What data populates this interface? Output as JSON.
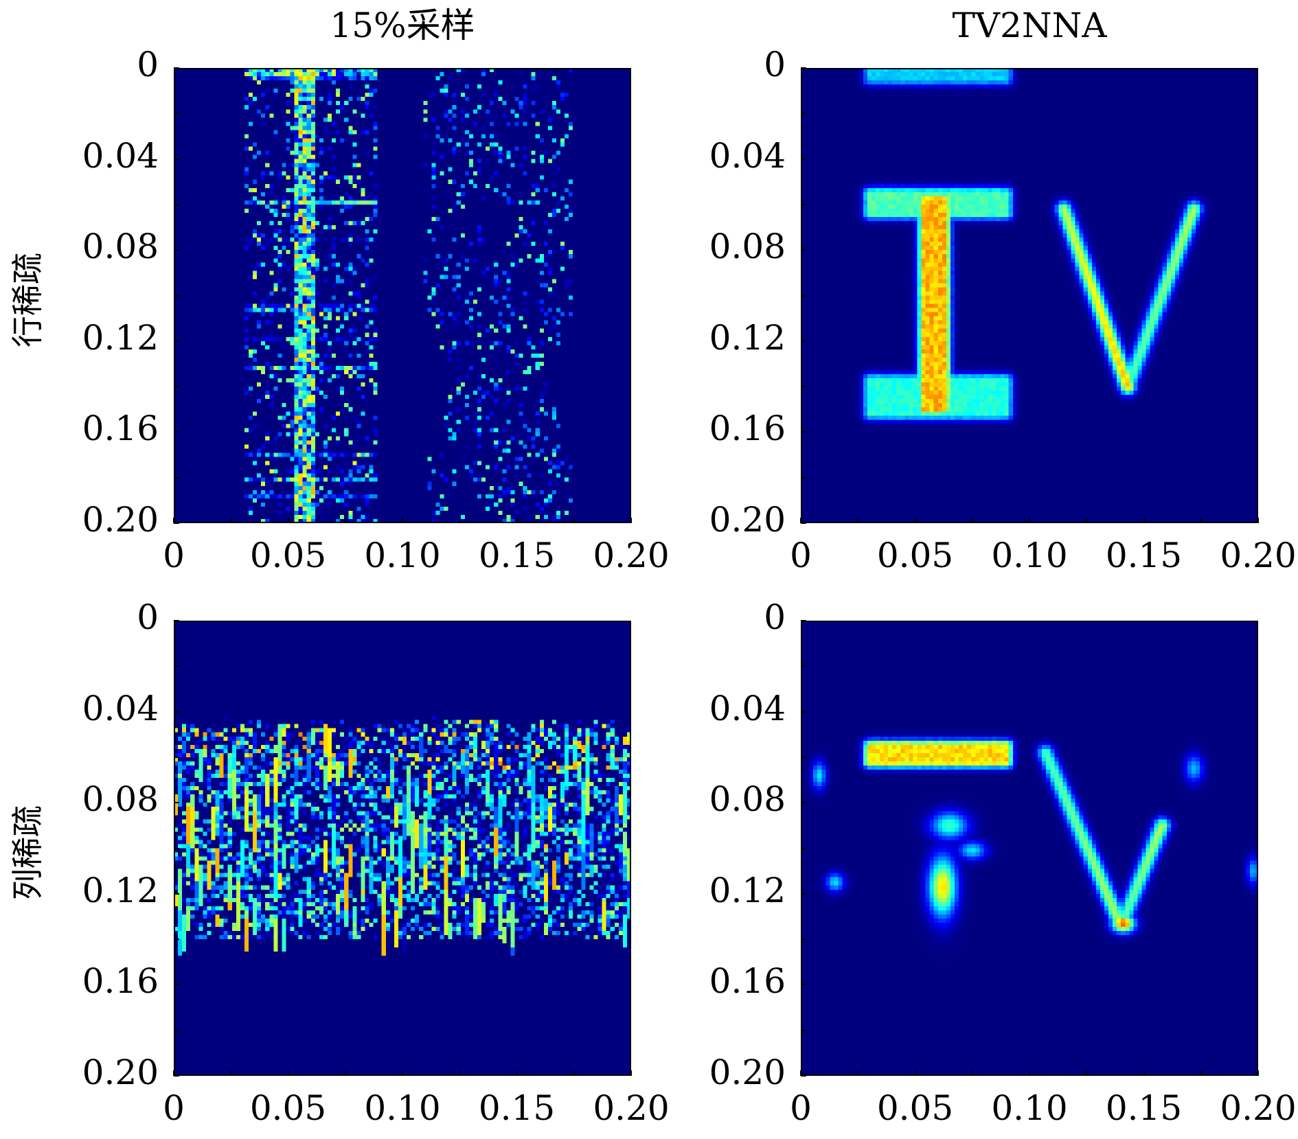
{
  "chart_data": [
    {
      "type": "heatmap",
      "title": "15%采样",
      "ylabel": "行稀疏",
      "xlim": [
        0,
        0.2
      ],
      "ylim": [
        0,
        0.2
      ],
      "xticks": [
        "0",
        "0.05",
        "0.10",
        "0.15",
        "0.20"
      ],
      "yticks": [
        "0",
        "0.04",
        "0.08",
        "0.12",
        "0.16",
        "0.20"
      ],
      "colormap": "jet",
      "y_direction": "down",
      "description_data": {
        "pattern": "row-sampled speckle",
        "bands": [
          [
            0.03,
            0.09
          ],
          [
            0.11,
            0.175
          ]
        ]
      }
    },
    {
      "type": "heatmap",
      "title": "TV2NNA",
      "ylabel": "",
      "xlim": [
        0,
        0.2
      ],
      "ylim": [
        0,
        0.2
      ],
      "xticks": [
        "0",
        "0.05",
        "0.10",
        "0.15",
        "0.20"
      ],
      "yticks": [
        "0",
        "0.04",
        "0.08",
        "0.12",
        "0.16",
        "0.20"
      ],
      "colormap": "jet",
      "y_direction": "down",
      "shapes": [
        {
          "kind": "rect",
          "x": [
            0.03,
            0.09
          ],
          "y": [
            0.055,
            0.064
          ],
          "value": 0.55
        },
        {
          "kind": "rect",
          "x": [
            0.054,
            0.063
          ],
          "y": [
            0.058,
            0.15
          ],
          "value": 0.85
        },
        {
          "kind": "rect",
          "x": [
            0.03,
            0.09
          ],
          "y": [
            0.137,
            0.152
          ],
          "value": 0.5
        },
        {
          "kind": "line",
          "from": [
            0.115,
            0.062
          ],
          "to": [
            0.143,
            0.14
          ],
          "value": 0.75
        },
        {
          "kind": "line",
          "from": [
            0.143,
            0.14
          ],
          "to": [
            0.172,
            0.062
          ],
          "value": 0.6
        },
        {
          "kind": "rect",
          "x": [
            0.03,
            0.09
          ],
          "y": [
            0.0,
            0.005
          ],
          "value": 0.4
        }
      ]
    },
    {
      "type": "heatmap",
      "title": "",
      "ylabel": "列稀疏",
      "xlim": [
        0,
        0.2
      ],
      "ylim": [
        0,
        0.2
      ],
      "xticks": [
        "0",
        "0.05",
        "0.10",
        "0.15",
        "0.20"
      ],
      "yticks": [
        "0",
        "0.04",
        "0.08",
        "0.12",
        "0.16",
        "0.20"
      ],
      "colormap": "jet",
      "y_direction": "down",
      "description_data": {
        "pattern": "column-sampled vertical streaks",
        "band_y": [
          0.042,
          0.142
        ]
      }
    },
    {
      "type": "heatmap",
      "title": "",
      "ylabel": "",
      "xlim": [
        0,
        0.2
      ],
      "ylim": [
        0,
        0.2
      ],
      "xticks": [
        "0",
        "0.05",
        "0.10",
        "0.15",
        "0.20"
      ],
      "yticks": [
        "0",
        "0.04",
        "0.08",
        "0.12",
        "0.16",
        "0.20"
      ],
      "colormap": "jet",
      "y_direction": "down",
      "shapes": [
        {
          "kind": "rect",
          "x": [
            0.03,
            0.09
          ],
          "y": [
            0.055,
            0.062
          ],
          "value": 0.8
        },
        {
          "kind": "blob",
          "c": [
            0.062,
            0.117
          ],
          "r": [
            0.006,
            0.013
          ],
          "value": 0.75
        },
        {
          "kind": "blob",
          "c": [
            0.065,
            0.09
          ],
          "r": [
            0.008,
            0.006
          ],
          "value": 0.5
        },
        {
          "kind": "blob",
          "c": [
            0.075,
            0.101
          ],
          "r": [
            0.006,
            0.004
          ],
          "value": 0.4
        },
        {
          "kind": "line",
          "from": [
            0.107,
            0.058
          ],
          "to": [
            0.14,
            0.134
          ],
          "value": 0.6
        },
        {
          "kind": "line",
          "from": [
            0.14,
            0.134
          ],
          "to": [
            0.158,
            0.09
          ],
          "value": 0.6
        },
        {
          "kind": "blob",
          "c": [
            0.141,
            0.133
          ],
          "r": [
            0.005,
            0.004
          ],
          "value": 0.9
        },
        {
          "kind": "blob",
          "c": [
            0.015,
            0.115
          ],
          "r": [
            0.004,
            0.004
          ],
          "value": 0.4
        },
        {
          "kind": "blob",
          "c": [
            0.008,
            0.068
          ],
          "r": [
            0.003,
            0.006
          ],
          "value": 0.4
        },
        {
          "kind": "blob",
          "c": [
            0.172,
            0.065
          ],
          "r": [
            0.004,
            0.006
          ],
          "value": 0.35
        },
        {
          "kind": "blob",
          "c": [
            0.198,
            0.11
          ],
          "r": [
            0.003,
            0.006
          ],
          "value": 0.35
        }
      ]
    }
  ]
}
